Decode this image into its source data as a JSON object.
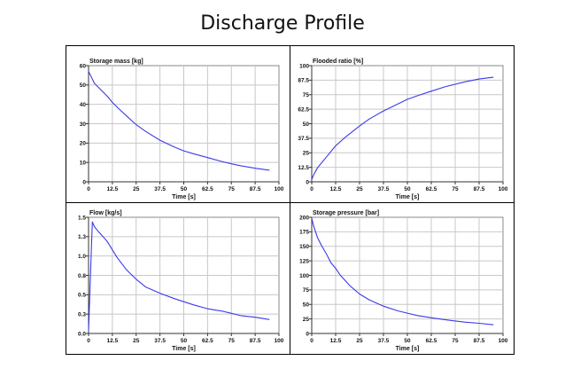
{
  "page": {
    "title": "Discharge Profile"
  },
  "chart_data": [
    {
      "type": "line",
      "title": "Storage mass [kg]",
      "xlabel": "Time [s]",
      "ylabel": "Storage mass [kg]",
      "xlim": [
        0,
        100
      ],
      "ylim": [
        0,
        60
      ],
      "xticks": [
        "0",
        "12.5",
        "25",
        "37.5",
        "50",
        "62.5",
        "75",
        "87.5",
        "100"
      ],
      "yticks": [
        "0",
        "10",
        "20",
        "30",
        "40",
        "50",
        "60"
      ],
      "grid": true,
      "color": "#3a3ae8",
      "series": [
        {
          "name": "Storage mass",
          "x": [
            0,
            1,
            3,
            6,
            10,
            12.5,
            15,
            20,
            25,
            30,
            37.5,
            45,
            50,
            55,
            62.5,
            70,
            75,
            80,
            87.5,
            95
          ],
          "y": [
            57,
            55,
            51,
            48,
            44,
            41,
            38.5,
            34,
            29.5,
            26,
            21.5,
            18,
            16,
            14.5,
            12.5,
            10.5,
            9.3,
            8.3,
            7,
            6
          ]
        }
      ]
    },
    {
      "type": "line",
      "title": "Flooded ratio [%]",
      "xlabel": "Time [s]",
      "ylabel": "Flooded ratio [%]",
      "xlim": [
        0,
        100
      ],
      "ylim": [
        0,
        100
      ],
      "xticks": [
        "0",
        "12.5",
        "25",
        "37.5",
        "50",
        "62.5",
        "75",
        "87.5",
        "100"
      ],
      "yticks": [
        "0",
        "12.5",
        "25",
        "37.5",
        "50",
        "62.5",
        "75",
        "87.5",
        "100"
      ],
      "grid": true,
      "color": "#3a3ae8",
      "series": [
        {
          "name": "Flooded ratio",
          "x": [
            0,
            1,
            3,
            5,
            8,
            12.5,
            18,
            25,
            30,
            37.5,
            45,
            50,
            55,
            62.5,
            70,
            75,
            80,
            87.5,
            95
          ],
          "y": [
            2,
            6,
            12,
            16,
            22,
            31,
            39,
            48,
            54,
            61,
            67,
            71,
            74,
            78,
            82,
            84,
            86,
            88.5,
            90
          ]
        }
      ]
    },
    {
      "type": "line",
      "title": "Flow [kg/s]",
      "xlabel": "Time [s]",
      "ylabel": "Flow [kg/s]",
      "xlim": [
        0,
        100
      ],
      "ylim": [
        0,
        1.5
      ],
      "xticks": [
        "0",
        "12.5",
        "25",
        "37.5",
        "50",
        "62.5",
        "75",
        "87.5",
        "100"
      ],
      "yticks": [
        "0.0",
        "0.3",
        "0.5",
        "0.8",
        "1.0",
        "1.3",
        "1.5"
      ],
      "grid": true,
      "color": "#3a3ae8",
      "series": [
        {
          "name": "Flow",
          "x": [
            0,
            1.5,
            2,
            3,
            5,
            8,
            10,
            12.5,
            15,
            20,
            25,
            30,
            37.5,
            45,
            50,
            55,
            62.5,
            67,
            70,
            75,
            80,
            87.5,
            95
          ],
          "y": [
            0.03,
            1.1,
            1.44,
            1.38,
            1.32,
            1.24,
            1.18,
            1.08,
            0.98,
            0.82,
            0.7,
            0.6,
            0.52,
            0.45,
            0.41,
            0.37,
            0.32,
            0.3,
            0.29,
            0.26,
            0.23,
            0.21,
            0.18
          ]
        }
      ]
    },
    {
      "type": "line",
      "title": "Storage pressure [bar]",
      "xlabel": "Time [s]",
      "ylabel": "Storage pressure [bar]",
      "xlim": [
        0,
        100
      ],
      "ylim": [
        0,
        200
      ],
      "xticks": [
        "0",
        "12.5",
        "25",
        "37.5",
        "50",
        "62.5",
        "75",
        "87.5",
        "100"
      ],
      "yticks": [
        "0",
        "25",
        "50",
        "75",
        "100",
        "125",
        "150",
        "175",
        "200"
      ],
      "grid": true,
      "color": "#3a3ae8",
      "series": [
        {
          "name": "Storage pressure",
          "x": [
            0,
            1,
            3,
            5,
            8,
            10,
            12.5,
            15,
            20,
            25,
            30,
            37.5,
            45,
            50,
            55,
            62.5,
            70,
            75,
            80,
            87.5,
            95
          ],
          "y": [
            198,
            185,
            165,
            152,
            135,
            122,
            112,
            100,
            82,
            68,
            58,
            47,
            39,
            35,
            31,
            27,
            23.5,
            21.5,
            19.5,
            17.5,
            15
          ]
        }
      ]
    }
  ]
}
